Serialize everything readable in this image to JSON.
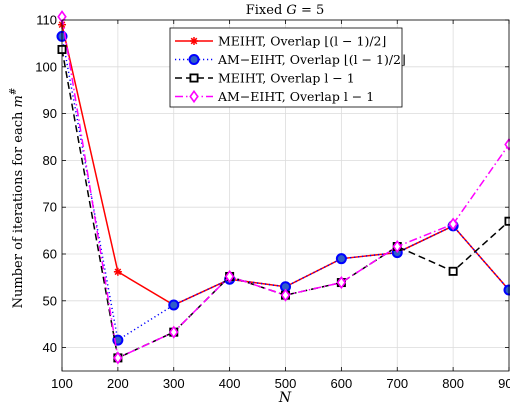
{
  "chart_data": {
    "type": "line",
    "title": "Fixed  G =  5",
    "xlabel": "N",
    "ylabel": "Number of iterations for each m#",
    "x": [
      100,
      200,
      300,
      400,
      500,
      600,
      700,
      800,
      900
    ],
    "xlim": [
      100,
      900
    ],
    "ylim": [
      35,
      110
    ],
    "xticks": [
      "100",
      "200",
      "300",
      "400",
      "500",
      "600",
      "700",
      "800",
      "900"
    ],
    "yticks": [
      "40",
      "50",
      "60",
      "70",
      "80",
      "90",
      "100",
      "110"
    ],
    "grid": true,
    "legend_position": "top-center",
    "series": [
      {
        "name": "MEIHT, Overlap ⌊(l − 1)/2⌋",
        "values": [
          109,
          56.2,
          49.1,
          54.6,
          53.0,
          59.0,
          60.3,
          66.0,
          52.3
        ],
        "color": "#ff0000",
        "dash": "solid",
        "marker": "star"
      },
      {
        "name": "AM−EIHT, Overlap ⌊(l − 1)/2⌋",
        "values": [
          106.5,
          41.6,
          49.1,
          54.6,
          53.0,
          59.0,
          60.3,
          66.0,
          52.3
        ],
        "color": "#0000ff",
        "dash": "dotted",
        "marker": "circle"
      },
      {
        "name": "MEIHT, Overlap l − 1",
        "values": [
          103.7,
          37.8,
          43.3,
          55.2,
          51.2,
          53.9,
          61.6,
          56.3,
          67.0
        ],
        "color": "#000000",
        "dash": "dashed",
        "marker": "square"
      },
      {
        "name": "AM−EIHT, Overlap l − 1",
        "values": [
          110.7,
          37.8,
          43.3,
          55.2,
          51.2,
          53.9,
          61.6,
          66.4,
          83.4
        ],
        "color": "#ff00ff",
        "dash": "dashdot",
        "marker": "diamond"
      }
    ]
  }
}
